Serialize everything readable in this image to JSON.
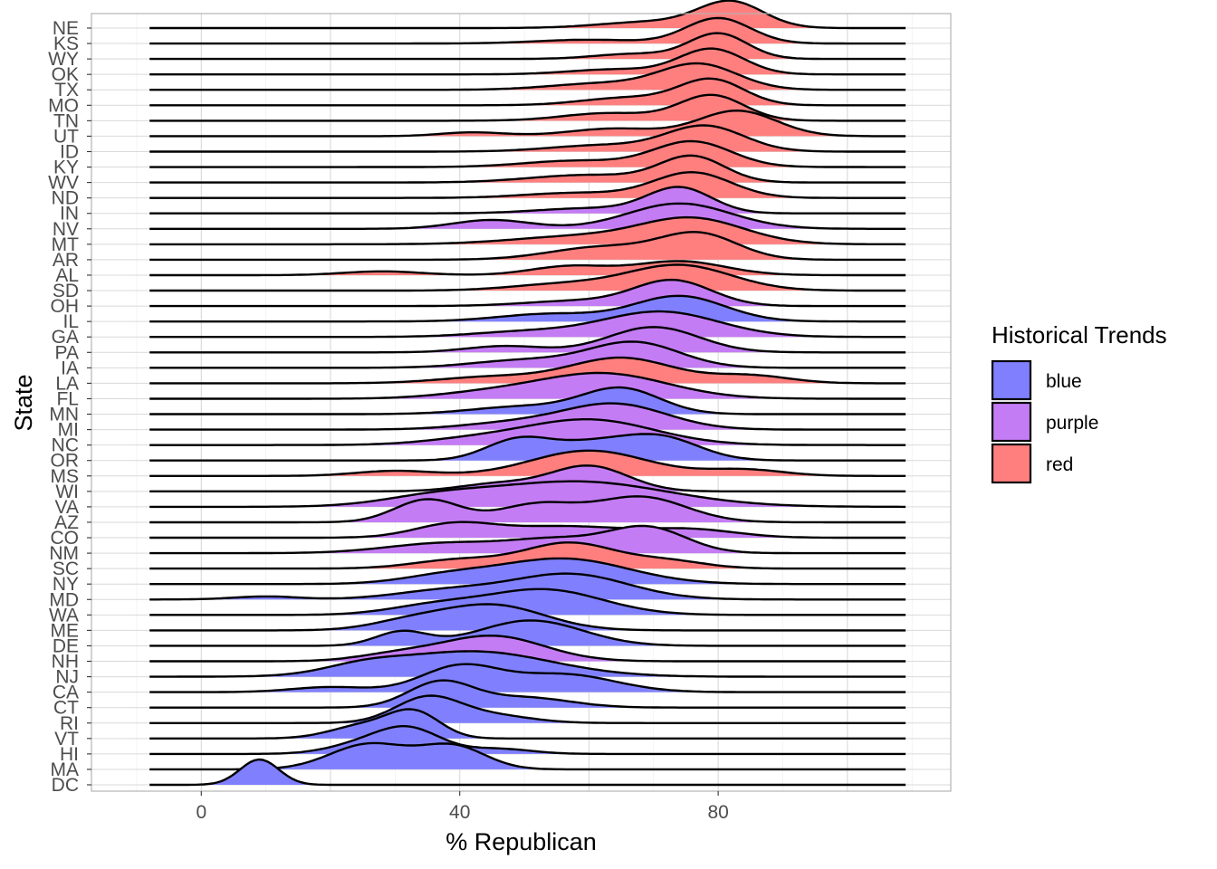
{
  "chart_data": {
    "type": "ridgeline",
    "xlabel": "% Republican",
    "ylabel": "State",
    "xlim": [
      -17,
      116
    ],
    "x_ticks": [
      0,
      40,
      80
    ],
    "x_tick_labels": [
      "0",
      "40",
      "80"
    ],
    "grid": true,
    "legend": {
      "title": "Historical Trends",
      "placement": "right",
      "entries": [
        {
          "key": "blue",
          "label": "blue",
          "fill": "#8080ff"
        },
        {
          "key": "purple",
          "label": "purple",
          "fill": "#c47cf4"
        },
        {
          "key": "red",
          "label": "red",
          "fill": "#ff7f7f"
        }
      ]
    },
    "density_x_range": [
      -8,
      109
    ],
    "states": [
      {
        "state": "NE",
        "trend": "red",
        "peaks": [
          [
            70,
            0.25,
            8
          ],
          [
            82,
            1.0,
            5
          ]
        ]
      },
      {
        "state": "KS",
        "trend": "red",
        "peaks": [
          [
            60,
            0.15,
            8
          ],
          [
            80,
            1.0,
            5
          ]
        ]
      },
      {
        "state": "WY",
        "trend": "red",
        "peaks": [
          [
            80,
            1.0,
            4.5
          ],
          [
            67,
            0.2,
            6
          ]
        ]
      },
      {
        "state": "OK",
        "trend": "red",
        "peaks": [
          [
            79,
            1.0,
            5
          ],
          [
            64,
            0.2,
            7
          ]
        ]
      },
      {
        "state": "TX",
        "trend": "red",
        "peaks": [
          [
            77,
            1.0,
            6
          ],
          [
            62,
            0.25,
            8
          ]
        ]
      },
      {
        "state": "MO",
        "trend": "red",
        "peaks": [
          [
            79,
            1.0,
            5
          ],
          [
            66,
            0.3,
            7
          ]
        ]
      },
      {
        "state": "TN",
        "trend": "red",
        "peaks": [
          [
            79,
            1.0,
            5
          ],
          [
            63,
            0.3,
            7
          ]
        ]
      },
      {
        "state": "UT",
        "trend": "red",
        "peaks": [
          [
            83,
            1.0,
            6
          ],
          [
            42,
            0.15,
            5
          ],
          [
            64,
            0.3,
            7
          ]
        ]
      },
      {
        "state": "ID",
        "trend": "red",
        "peaks": [
          [
            78,
            1.0,
            6
          ],
          [
            62,
            0.25,
            8
          ]
        ]
      },
      {
        "state": "KY",
        "trend": "red",
        "peaks": [
          [
            76,
            1.0,
            6
          ],
          [
            58,
            0.25,
            8
          ]
        ]
      },
      {
        "state": "WV",
        "trend": "red",
        "peaks": [
          [
            76,
            1.0,
            5
          ],
          [
            60,
            0.3,
            9
          ]
        ]
      },
      {
        "state": "ND",
        "trend": "red",
        "peaks": [
          [
            76,
            1.0,
            6
          ],
          [
            58,
            0.2,
            8
          ]
        ]
      },
      {
        "state": "IN",
        "trend": "purple",
        "peaks": [
          [
            74,
            1.0,
            5
          ],
          [
            60,
            0.2,
            8
          ]
        ]
      },
      {
        "state": "NV",
        "trend": "purple",
        "peaks": [
          [
            45,
            0.35,
            6
          ],
          [
            74,
            1.0,
            8
          ]
        ]
      },
      {
        "state": "MT",
        "trend": "red",
        "peaks": [
          [
            76,
            1.0,
            8
          ],
          [
            58,
            0.3,
            10
          ]
        ]
      },
      {
        "state": "AR",
        "trend": "red",
        "peaks": [
          [
            77,
            1.0,
            6
          ],
          [
            62,
            0.5,
            8
          ]
        ]
      },
      {
        "state": "AL",
        "trend": "red",
        "peaks": [
          [
            28,
            0.15,
            6
          ],
          [
            57,
            0.35,
            6
          ],
          [
            74,
            0.55,
            7
          ]
        ]
      },
      {
        "state": "SD",
        "trend": "red",
        "peaks": [
          [
            74,
            1.0,
            8
          ],
          [
            56,
            0.25,
            8
          ]
        ]
      },
      {
        "state": "OH",
        "trend": "purple",
        "peaks": [
          [
            73,
            1.0,
            6
          ],
          [
            58,
            0.2,
            8
          ]
        ]
      },
      {
        "state": "IL",
        "trend": "blue",
        "peaks": [
          [
            74,
            1.0,
            7
          ],
          [
            54,
            0.3,
            8
          ]
        ]
      },
      {
        "state": "GA",
        "trend": "purple",
        "peaks": [
          [
            71,
            1.0,
            9
          ],
          [
            50,
            0.2,
            8
          ]
        ]
      },
      {
        "state": "PA",
        "trend": "purple",
        "peaks": [
          [
            70,
            1.0,
            7
          ],
          [
            47,
            0.25,
            6
          ]
        ]
      },
      {
        "state": "IA",
        "trend": "purple",
        "peaks": [
          [
            67,
            1.0,
            7
          ],
          [
            50,
            0.3,
            8
          ]
        ]
      },
      {
        "state": "LA",
        "trend": "red",
        "peaks": [
          [
            65,
            1.0,
            8
          ],
          [
            45,
            0.25,
            8
          ],
          [
            85,
            0.3,
            6
          ]
        ]
      },
      {
        "state": "FL",
        "trend": "purple",
        "peaks": [
          [
            62,
            1.0,
            10
          ],
          [
            44,
            0.2,
            8
          ]
        ]
      },
      {
        "state": "MN",
        "trend": "blue",
        "peaks": [
          [
            65,
            1.0,
            6
          ],
          [
            50,
            0.3,
            8
          ]
        ]
      },
      {
        "state": "MI",
        "trend": "purple",
        "peaks": [
          [
            64,
            1.0,
            8
          ],
          [
            48,
            0.25,
            8
          ]
        ]
      },
      {
        "state": "NC",
        "trend": "purple",
        "peaks": [
          [
            60,
            1.0,
            10
          ],
          [
            42,
            0.2,
            8
          ]
        ]
      },
      {
        "state": "OR",
        "trend": "blue",
        "peaks": [
          [
            49,
            0.8,
            5
          ],
          [
            71,
            0.9,
            6
          ],
          [
            60,
            0.6,
            6
          ]
        ]
      },
      {
        "state": "MS",
        "trend": "red",
        "peaks": [
          [
            30,
            0.2,
            6
          ],
          [
            60,
            1.0,
            9
          ],
          [
            84,
            0.25,
            6
          ]
        ]
      },
      {
        "state": "WI",
        "trend": "purple",
        "peaks": [
          [
            60,
            1.0,
            6
          ],
          [
            46,
            0.3,
            6
          ]
        ]
      },
      {
        "state": "VA",
        "trend": "purple",
        "peaks": [
          [
            58,
            1.0,
            14
          ],
          [
            36,
            0.3,
            8
          ]
        ]
      },
      {
        "state": "AZ",
        "trend": "purple",
        "peaks": [
          [
            35,
            0.9,
            5
          ],
          [
            68,
            1.0,
            7
          ],
          [
            52,
            0.7,
            6
          ]
        ]
      },
      {
        "state": "CO",
        "trend": "purple",
        "peaks": [
          [
            39,
            0.5,
            6
          ],
          [
            56,
            0.45,
            10
          ],
          [
            76,
            0.3,
            7
          ]
        ]
      },
      {
        "state": "NM",
        "trend": "purple",
        "peaks": [
          [
            38,
            0.4,
            9
          ],
          [
            69,
            1.0,
            6
          ],
          [
            55,
            0.5,
            7
          ]
        ]
      },
      {
        "state": "SC",
        "trend": "red",
        "peaks": [
          [
            57,
            1.0,
            7
          ],
          [
            40,
            0.35,
            7
          ],
          [
            72,
            0.3,
            6
          ]
        ]
      },
      {
        "state": "NY",
        "trend": "blue",
        "peaks": [
          [
            56,
            1.0,
            10
          ],
          [
            38,
            0.3,
            7
          ]
        ]
      },
      {
        "state": "MD",
        "trend": "blue",
        "peaks": [
          [
            57,
            1.0,
            9
          ],
          [
            10,
            0.12,
            5
          ],
          [
            38,
            0.35,
            8
          ]
        ]
      },
      {
        "state": "WA",
        "trend": "blue",
        "peaks": [
          [
            53,
            1.0,
            9
          ],
          [
            36,
            0.35,
            7
          ]
        ]
      },
      {
        "state": "ME",
        "trend": "blue",
        "peaks": [
          [
            45,
            1.0,
            8
          ],
          [
            32,
            0.3,
            6
          ]
        ]
      },
      {
        "state": "DE",
        "trend": "blue",
        "peaks": [
          [
            31,
            0.55,
            4
          ],
          [
            51,
            1.0,
            8
          ]
        ]
      },
      {
        "state": "NH",
        "trend": "purple",
        "peaks": [
          [
            45,
            1.0,
            8
          ],
          [
            30,
            0.25,
            6
          ]
        ]
      },
      {
        "state": "NJ",
        "trend": "blue",
        "peaks": [
          [
            42,
            1.0,
            12
          ],
          [
            25,
            0.3,
            6
          ]
        ]
      },
      {
        "state": "CA",
        "trend": "blue",
        "peaks": [
          [
            40,
            1.0,
            6
          ],
          [
            56,
            0.7,
            8
          ],
          [
            20,
            0.2,
            6
          ]
        ]
      },
      {
        "state": "CT",
        "trend": "blue",
        "peaks": [
          [
            37,
            1.0,
            5
          ],
          [
            50,
            0.4,
            7
          ]
        ]
      },
      {
        "state": "RI",
        "trend": "blue",
        "peaks": [
          [
            35,
            1.0,
            5
          ],
          [
            45,
            0.3,
            6
          ]
        ]
      },
      {
        "state": "VT",
        "trend": "blue",
        "peaks": [
          [
            33,
            1.0,
            4
          ],
          [
            25,
            0.5,
            5
          ]
        ]
      },
      {
        "state": "HI",
        "trend": "blue",
        "peaks": [
          [
            32,
            1.0,
            5
          ],
          [
            24,
            0.3,
            5
          ],
          [
            46,
            0.2,
            5
          ]
        ]
      },
      {
        "state": "MA",
        "trend": "blue",
        "peaks": [
          [
            26,
            1.0,
            6
          ],
          [
            39,
            0.9,
            5
          ]
        ]
      },
      {
        "state": "DC",
        "trend": "blue",
        "peaks": [
          [
            9,
            1.0,
            3
          ]
        ]
      }
    ]
  }
}
